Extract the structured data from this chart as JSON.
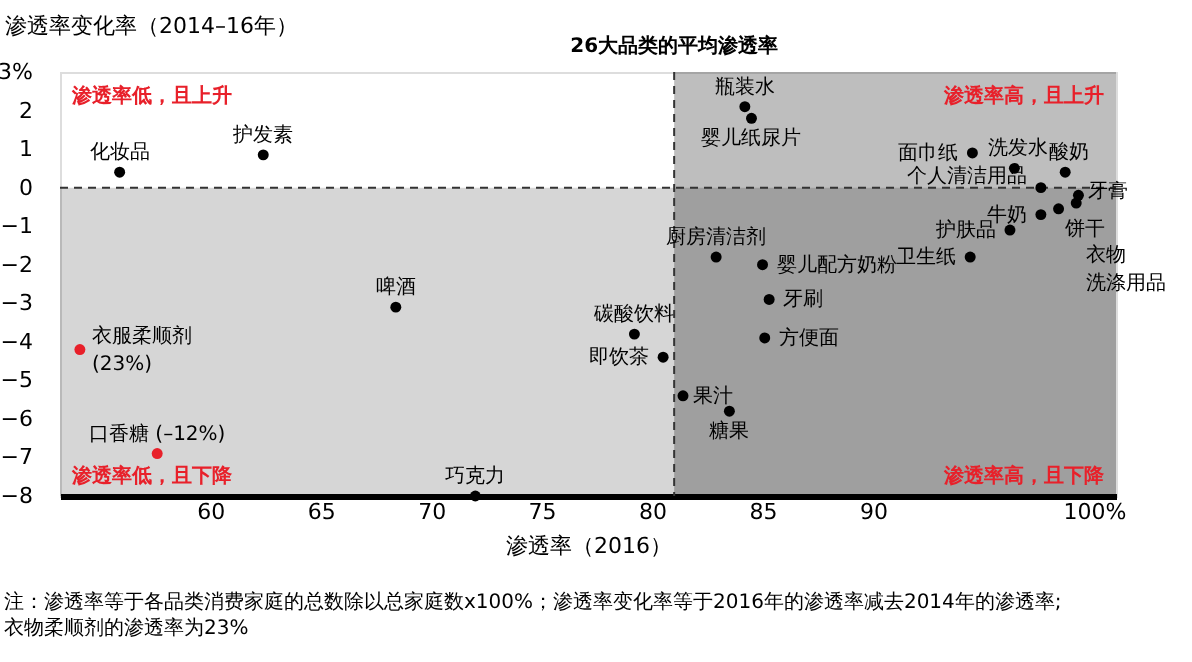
{
  "chart_data": {
    "type": "scatter",
    "xlabel": "渗透率（2016）",
    "ylabel": "渗透率变化率（2014–16年）",
    "xlim": [
      53.2,
      101
    ],
    "ylim": [
      -8,
      3
    ],
    "xticks": [
      60,
      65,
      70,
      75,
      80,
      85,
      90,
      {
        "value": 100,
        "label": "100%"
      }
    ],
    "yticks": [
      {
        "value": 3,
        "label": "3%"
      },
      2,
      1,
      0,
      -1,
      -2,
      -3,
      -4,
      -5,
      -6,
      -7,
      -8
    ],
    "grid": false,
    "marker": "circle",
    "series": [
      {
        "name": "化妆品",
        "color": "#000000",
        "x": [
          55.9
        ],
        "values": [
          0.4
        ]
      },
      {
        "name": "护发素",
        "color": "#000000",
        "x": [
          62.4
        ],
        "values": [
          0.85
        ]
      },
      {
        "name": "啤酒",
        "color": "#000000",
        "x": [
          68.4
        ],
        "values": [
          -3.1
        ]
      },
      {
        "name": "衣服柔顺剂 (23%)",
        "color": "#e8202a",
        "x": [
          54.1
        ],
        "values": [
          -4.2
        ]
      },
      {
        "name": "口香糖 (–12%)",
        "color": "#e8202a",
        "x": [
          57.6
        ],
        "values": [
          -6.9
        ]
      },
      {
        "name": "巧克力",
        "color": "#000000",
        "x": [
          72.0
        ],
        "values": [
          -8.0
        ]
      },
      {
        "name": "瓶装水",
        "color": "#000000",
        "x": [
          84.2
        ],
        "values": [
          2.1
        ]
      },
      {
        "name": "婴儿纸尿片",
        "color": "#000000",
        "x": [
          84.5
        ],
        "values": [
          1.8
        ]
      },
      {
        "name": "面巾纸",
        "color": "#000000",
        "x": [
          94.5
        ],
        "values": [
          0.9
        ]
      },
      {
        "name": "洗发水",
        "color": "#000000",
        "x": [
          96.4
        ],
        "values": [
          0.5
        ]
      },
      {
        "name": "酸奶",
        "color": "#000000",
        "x": [
          98.7
        ],
        "values": [
          0.4
        ]
      },
      {
        "name": "个人清洁用品",
        "color": "#000000",
        "x": [
          97.6
        ],
        "values": [
          0.0
        ]
      },
      {
        "name": "牙膏",
        "color": "#000000",
        "x": [
          99.3
        ],
        "values": [
          -0.2
        ]
      },
      {
        "name": "衣物洗涤用品",
        "color": "#000000",
        "x": [
          99.2
        ],
        "values": [
          -0.4
        ]
      },
      {
        "name": "饼干",
        "color": "#000000",
        "x": [
          98.4
        ],
        "values": [
          -0.55
        ]
      },
      {
        "name": "牛奶",
        "color": "#000000",
        "x": [
          97.6
        ],
        "values": [
          -0.7
        ]
      },
      {
        "name": "护肤品",
        "color": "#000000",
        "x": [
          96.2
        ],
        "values": [
          -1.1
        ]
      },
      {
        "name": "卫生纸",
        "color": "#000000",
        "x": [
          94.4
        ],
        "values": [
          -1.8
        ]
      },
      {
        "name": "厨房清洁剂",
        "color": "#000000",
        "x": [
          82.9
        ],
        "values": [
          -1.8
        ]
      },
      {
        "name": "婴儿配方奶粉",
        "color": "#000000",
        "x": [
          85.0
        ],
        "values": [
          -2.0
        ]
      },
      {
        "name": "牙刷",
        "color": "#000000",
        "x": [
          85.3
        ],
        "values": [
          -2.9
        ]
      },
      {
        "name": "方便面",
        "color": "#000000",
        "x": [
          85.1
        ],
        "values": [
          -3.9
        ]
      },
      {
        "name": "碳酸饮料",
        "color": "#000000",
        "x": [
          79.2
        ],
        "values": [
          -3.8
        ]
      },
      {
        "name": "即饮茶",
        "color": "#000000",
        "x": [
          80.5
        ],
        "values": [
          -4.4
        ]
      },
      {
        "name": "果汁",
        "color": "#000000",
        "x": [
          81.4
        ],
        "values": [
          -5.4
        ]
      },
      {
        "name": "糖果",
        "color": "#000000",
        "x": [
          83.5
        ],
        "values": [
          -5.8
        ]
      }
    ],
    "bands": [
      {
        "axis": "x",
        "from": 81,
        "to": 101,
        "color": "#bebebe"
      },
      {
        "axis": "y",
        "from": -8,
        "to": 0,
        "color": "#d6d6d6"
      }
    ],
    "ref_lines": [
      {
        "axis": "x",
        "value": 81,
        "label": "26大品类的平均渗透率",
        "line_style": "dashed"
      },
      {
        "axis": "y",
        "value": 0,
        "line_style": "dashed"
      }
    ],
    "annotations": [
      "渗透率低，且上升",
      "渗透率高，且上升",
      "渗透率低，且下降",
      "渗透率高，且下降",
      "注：渗透率等于各品类消费家庭的总数除以总家庭数x100%；渗透率变化率等于2016年的渗透率减去2014年的渗透率; 衣物柔顺剂的渗透率为23%"
    ]
  }
}
